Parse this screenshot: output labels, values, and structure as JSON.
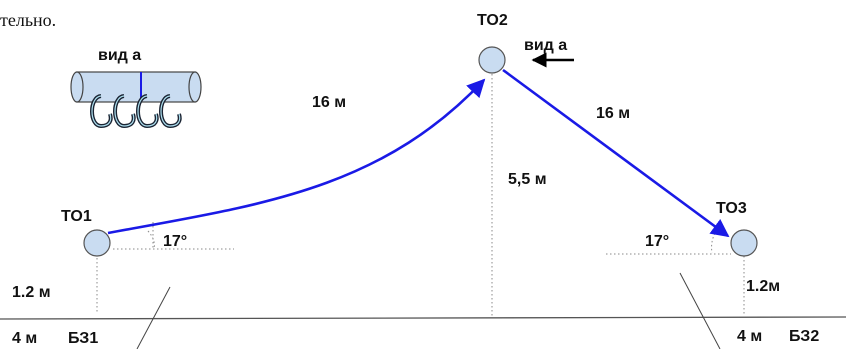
{
  "header": {
    "cutoff_text": "тельно."
  },
  "inset": {
    "caption": "вид а"
  },
  "nodes": {
    "to1": {
      "label": "ТО1"
    },
    "to2": {
      "label": "ТО2"
    },
    "to3": {
      "label": "ТО3"
    }
  },
  "view_marker": {
    "label": "вид а"
  },
  "measurements": {
    "span_left": "16 м",
    "span_right": "16 м",
    "height_to2": "5,5 м",
    "height_to1": "1.2 м",
    "height_to3": "1.2м",
    "angle_left": "17°",
    "angle_right": "17°",
    "distance_left": "4 м",
    "distance_right": "4 м"
  },
  "zones": {
    "left": "БЗ1",
    "right": "БЗ2"
  },
  "colors": {
    "rope": "#1a1ae6",
    "node_fill": "#c9dcf1",
    "carabiner": "#1b2433",
    "carabiner_light": "#aee0f0",
    "ground": "#555555"
  }
}
